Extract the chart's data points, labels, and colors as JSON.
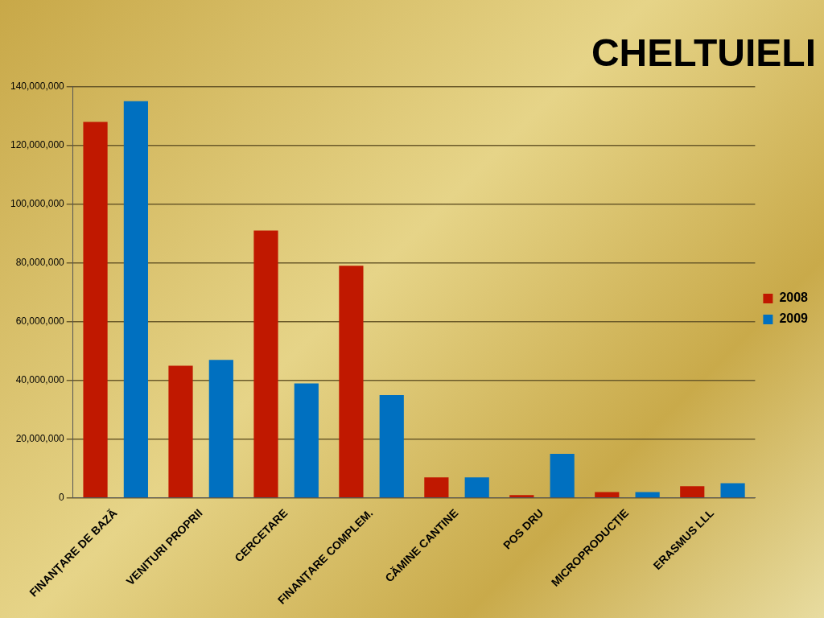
{
  "chart_data": {
    "type": "bar",
    "title": "CHELTUIELI",
    "categories": [
      "FINANȚARE DE BAZĂ",
      "VENITURI PROPRII",
      "CERCETARE",
      "FINANȚARE COMPLEM.",
      "CĂMINE CANTINE",
      "POS DRU",
      "MICROPRODUCȚIE",
      "ERASMUS LLL"
    ],
    "series": [
      {
        "name": "2008",
        "color": "#c01800",
        "values": [
          128000000,
          45000000,
          91000000,
          79000000,
          7000000,
          1000000,
          2000000,
          4000000
        ]
      },
      {
        "name": "2009",
        "color": "#0070c0",
        "values": [
          135000000,
          47000000,
          39000000,
          35000000,
          7000000,
          15000000,
          2000000,
          5000000
        ]
      }
    ],
    "ylim": [
      0,
      140000000
    ],
    "yticks": [
      0,
      {
        "value": 20000000,
        "label": "20,000,000"
      },
      {
        "value": 40000000,
        "label": "40,000,000"
      },
      {
        "value": 60000000,
        "label": "60,000,000"
      },
      {
        "value": 80000000,
        "label": "80,000,000"
      },
      {
        "value": 100000000,
        "label": "100,000,000"
      },
      {
        "value": 120000000,
        "label": "120,000,000"
      },
      {
        "value": 140000000,
        "label": "140,000,000"
      }
    ],
    "grid": "y",
    "legend": "right"
  }
}
